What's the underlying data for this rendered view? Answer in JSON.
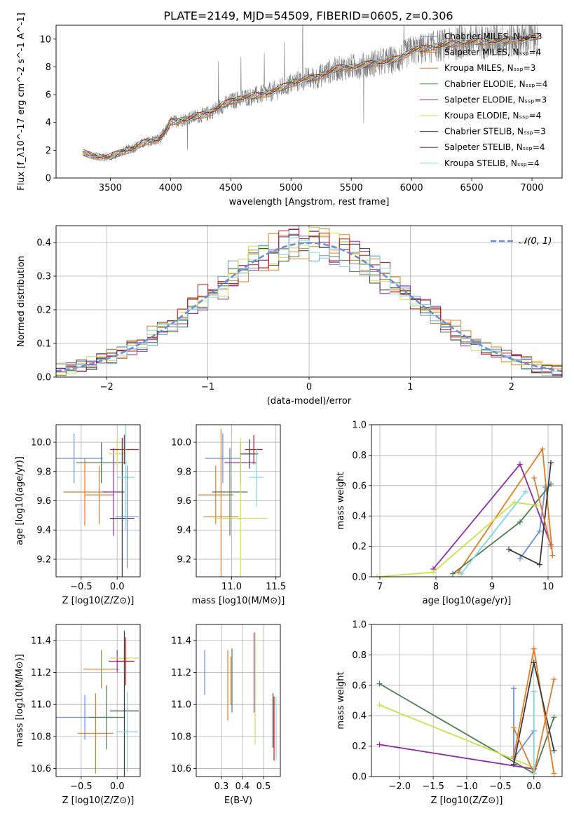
{
  "title": "PLATE=2149, MJD=54509, FIBERID=0605, z=0.306",
  "colors": {
    "Chabrier MILES": "#6a8fd8",
    "Salpeter MILES": "#e37c1f",
    "Kroupa MILES": "#d97f34",
    "Chabrier ELODIE": "#4b7f4f",
    "Salpeter ELODIE": "#8e2ea8",
    "Kroupa ELODIE": "#c9e24a",
    "Chabrier STELIB": "#3b3b3b",
    "Salpeter STELIB": "#c31a1a",
    "Kroupa STELIB": "#7fd6dd",
    "gaussian": "#6a8fd8",
    "data": "#808080"
  },
  "chart_data": [
    {
      "id": "spectrum",
      "type": "line",
      "xlabel": "wavelength [Angstrom, rest frame]",
      "ylabel": "Flux [f_λ10^-17 erg cm^-2 s^-1 A^-1]",
      "xlim": [
        3050,
        7250
      ],
      "ylim": [
        0,
        11
      ],
      "xticks": [
        3500,
        4000,
        4500,
        5000,
        5500,
        6000,
        6500,
        7000
      ],
      "yticks": [
        0,
        2,
        4,
        6,
        8,
        10
      ],
      "legend_position": "top-right",
      "series": [
        {
          "name": "Chabrier MILES, N_SSP=3"
        },
        {
          "name": "Salpeter MILES, N_SSP=4"
        },
        {
          "name": "Kroupa MILES, N_SSP=3"
        },
        {
          "name": "Chabrier ELODIE, N_SSP=4"
        },
        {
          "name": "Salpeter ELODIE, N_SSP=3"
        },
        {
          "name": "Kroupa ELODIE, N_SSP=4"
        },
        {
          "name": "Chabrier STELIB, N_SSP=3"
        },
        {
          "name": "Salpeter STELIB, N_SSP=4"
        },
        {
          "name": "Kroupa STELIB, N_SSP=4"
        }
      ],
      "model_continuum": {
        "x": [
          3270,
          3350,
          3500,
          3600,
          3700,
          3800,
          3900,
          3950,
          4000,
          4100,
          4200,
          4300,
          4400,
          4500,
          4600,
          4700,
          4800,
          4900,
          5000,
          5100,
          5200,
          5300,
          5400,
          5500,
          5600,
          5700,
          5800,
          5900,
          6000,
          6100,
          6200,
          6300,
          6400,
          6500,
          6600,
          6700,
          6800,
          6900,
          7000,
          7050
        ],
        "y": [
          1.8,
          1.6,
          1.5,
          1.9,
          2.2,
          2.6,
          2.8,
          3.2,
          4.0,
          4.2,
          4.4,
          4.6,
          5.1,
          5.5,
          5.8,
          5.9,
          6.1,
          6.4,
          6.8,
          7.1,
          7.2,
          7.6,
          7.9,
          8.0,
          8.1,
          8.3,
          8.4,
          8.6,
          9.2,
          9.3,
          9.5,
          9.6,
          9.7,
          9.8,
          9.8,
          9.9,
          9.9,
          10.0,
          10.1,
          10.2
        ]
      }
    },
    {
      "id": "residuals",
      "type": "histogram",
      "xlabel": "(data-model)/error",
      "ylabel": "Normed distribution",
      "xlim": [
        -2.5,
        2.5
      ],
      "ylim": [
        0,
        0.45
      ],
      "xticks": [
        -2,
        -1,
        0,
        1,
        2
      ],
      "yticks": [
        0.0,
        0.1,
        0.2,
        0.3,
        0.4
      ],
      "grid": true,
      "legend_position": "top-right",
      "gaussian_label": "𝒩(0, 1)"
    },
    {
      "id": "age_vs_Z",
      "type": "errorbar",
      "xlabel": "Z [log10(Z/Z⊙)]",
      "ylabel": "age  [log10(age/yr)]",
      "xlim": [
        -0.85,
        0.32
      ],
      "ylim": [
        9.08,
        10.12
      ],
      "xticks": [
        -0.5,
        0.0
      ],
      "yticks": [
        9.2,
        9.4,
        9.6,
        9.8,
        10.0
      ],
      "grid": true,
      "points": [
        {
          "x": -0.6,
          "y": 9.89,
          "xerr": 0.4,
          "yerr": 0.17
        },
        {
          "x": -0.45,
          "y": 9.66,
          "xerr": 0.3,
          "yerr": 0.23
        },
        {
          "x": -0.25,
          "y": 9.64,
          "xerr": 0.2,
          "yerr": 0.2
        },
        {
          "x": -0.22,
          "y": 9.86,
          "xerr": 0.35,
          "yerr": 0.14
        },
        {
          "x": -0.05,
          "y": 9.66,
          "xerr": 0.15,
          "yerr": 0.3
        },
        {
          "x": 0.0,
          "y": 9.92,
          "xerr": 0.12,
          "yerr": 0.1
        },
        {
          "x": 0.07,
          "y": 9.48,
          "xerr": 0.17,
          "yerr": 0.55
        },
        {
          "x": 0.1,
          "y": 9.95,
          "xerr": 0.2,
          "yerr": 0.1
        },
        {
          "x": 0.12,
          "y": 9.76,
          "xerr": 0.12,
          "yerr": 0.36
        },
        {
          "x": 0.14,
          "y": 9.49,
          "xerr": 0.16,
          "yerr": 0.35
        }
      ]
    },
    {
      "id": "age_vs_mass",
      "type": "errorbar",
      "xlabel": "mass [log10(M/M⊙)]",
      "xlim": [
        10.6,
        11.55
      ],
      "ylim": [
        9.08,
        10.12
      ],
      "xticks": [
        11.0,
        11.5
      ],
      "yticks": [
        9.2,
        9.4,
        9.6,
        9.8,
        10.0
      ],
      "grid": true,
      "points": [
        {
          "x": 10.9,
          "y": 9.89,
          "xerr": 0.2,
          "yerr": 0.17
        },
        {
          "x": 10.82,
          "y": 9.64,
          "xerr": 0.2,
          "yerr": 0.2
        },
        {
          "x": 10.88,
          "y": 9.49,
          "xerr": 0.2,
          "yerr": 0.6
        },
        {
          "x": 10.98,
          "y": 9.66,
          "xerr": 0.2,
          "yerr": 0.3
        },
        {
          "x": 11.1,
          "y": 9.86,
          "xerr": 0.18,
          "yerr": 0.14
        },
        {
          "x": 11.1,
          "y": 9.48,
          "xerr": 0.3,
          "yerr": 0.55
        },
        {
          "x": 11.2,
          "y": 9.92,
          "xerr": 0.1,
          "yerr": 0.1
        },
        {
          "x": 11.25,
          "y": 9.95,
          "xerr": 0.1,
          "yerr": 0.1
        },
        {
          "x": 11.28,
          "y": 9.76,
          "xerr": 0.08,
          "yerr": 0.2
        }
      ]
    },
    {
      "id": "weight_vs_age",
      "type": "line",
      "xlabel": "age  [log10(age/yr)]",
      "ylabel": "mass weight",
      "xlim": [
        6.85,
        10.25
      ],
      "ylim": [
        0,
        1.0
      ],
      "xticks": [
        7,
        8,
        9,
        10
      ],
      "yticks": [
        0.0,
        0.2,
        0.4,
        0.6,
        0.8,
        1.0
      ],
      "grid": true,
      "series": [
        {
          "name": "Chabrier MILES",
          "x": [
            9.5,
            9.85,
            9.95
          ],
          "y": [
            0.12,
            0.3,
            0.59
          ]
        },
        {
          "name": "Salpeter MILES",
          "x": [
            8.4,
            9.9,
            10.08
          ],
          "y": [
            0.03,
            0.84,
            0.14
          ]
        },
        {
          "name": "Chabrier ELODIE",
          "x": [
            8.3,
            9.5,
            10.05
          ],
          "y": [
            0.02,
            0.36,
            0.61
          ]
        },
        {
          "name": "Salpeter ELODIE",
          "x": [
            7.95,
            9.5,
            10.05
          ],
          "y": [
            0.05,
            0.74,
            0.21
          ]
        },
        {
          "name": "Kroupa ELODIE",
          "x": [
            6.95,
            7.95,
            9.4,
            9.8
          ],
          "y": [
            0.0,
            0.03,
            0.49,
            0.47
          ]
        },
        {
          "name": "Chabrier STELIB",
          "x": [
            9.3,
            9.85,
            10.05
          ],
          "y": [
            0.18,
            0.08,
            0.75
          ]
        },
        {
          "name": "Kroupa STELIB",
          "x": [
            8.45,
            9.6
          ],
          "y": [
            0.02,
            0.56
          ]
        },
        {
          "name": "Kroupa MILES",
          "x": [
            9.75,
            10.05
          ],
          "y": [
            0.65,
            0.2
          ]
        }
      ]
    },
    {
      "id": "mass_vs_Z",
      "type": "errorbar",
      "xlabel": "Z [log10(Z/Z⊙)]",
      "ylabel": "mass [log10(M/M⊙)]",
      "xlim": [
        -0.85,
        0.32
      ],
      "ylim": [
        10.55,
        11.5
      ],
      "xticks": [
        -0.5,
        0.0
      ],
      "yticks": [
        10.6,
        10.8,
        11.0,
        11.2,
        11.4
      ],
      "grid": true,
      "points": [
        {
          "x": -0.45,
          "y": 10.92,
          "xerr": 0.4,
          "yerr": 0.14
        },
        {
          "x": -0.3,
          "y": 10.82,
          "xerr": 0.25,
          "yerr": 0.25
        },
        {
          "x": -0.22,
          "y": 11.22,
          "xerr": 0.25,
          "yerr": 0.12
        },
        {
          "x": -0.15,
          "y": 10.92,
          "xerr": 0.25,
          "yerr": 0.2
        },
        {
          "x": 0.0,
          "y": 11.27,
          "xerr": 0.12,
          "yerr": 0.07
        },
        {
          "x": 0.1,
          "y": 11.29,
          "xerr": 0.2,
          "yerr": 0.06
        },
        {
          "x": 0.1,
          "y": 10.96,
          "xerr": 0.2,
          "yerr": 0.5
        },
        {
          "x": 0.12,
          "y": 11.27,
          "xerr": 0.12,
          "yerr": 0.15
        },
        {
          "x": 0.14,
          "y": 10.83,
          "xerr": 0.15,
          "yerr": 0.25
        }
      ]
    },
    {
      "id": "mass_vs_ebv",
      "type": "errorbar",
      "xlabel": "E(B-V)",
      "xlim": [
        0.18,
        0.58
      ],
      "ylim": [
        10.55,
        11.5
      ],
      "xticks": [
        0.3,
        0.4,
        0.5
      ],
      "yticks": [
        10.6,
        10.8,
        11.0,
        11.2,
        11.4
      ],
      "grid": true,
      "points": [
        {
          "x": 0.22,
          "y": 11.2,
          "xerr": 0,
          "yerr": 0.14
        },
        {
          "x": 0.33,
          "y": 11.12,
          "xerr": 0,
          "yerr": 0.22
        },
        {
          "x": 0.345,
          "y": 11.15,
          "xerr": 0,
          "yerr": 0.15
        },
        {
          "x": 0.35,
          "y": 11.15,
          "xerr": 0,
          "yerr": 0.2
        },
        {
          "x": 0.455,
          "y": 11.2,
          "xerr": 0,
          "yerr": 0.25
        },
        {
          "x": 0.46,
          "y": 11.1,
          "xerr": 0,
          "yerr": 0.35
        },
        {
          "x": 0.545,
          "y": 10.9,
          "xerr": 0,
          "yerr": 0.17
        },
        {
          "x": 0.55,
          "y": 10.85,
          "xerr": 0,
          "yerr": 0.2
        },
        {
          "x": 0.56,
          "y": 10.85,
          "xerr": 0,
          "yerr": 0.2
        }
      ]
    },
    {
      "id": "weight_vs_Z",
      "type": "line",
      "xlabel": "Z [log10(Z/Z⊙)]",
      "ylabel": "mass weight",
      "xlim": [
        -2.42,
        0.42
      ],
      "ylim": [
        0,
        1.0
      ],
      "xticks": [
        -2.0,
        -1.5,
        -1.0,
        -0.5,
        0.0
      ],
      "yticks": [
        0.0,
        0.2,
        0.4,
        0.6,
        0.8,
        1.0
      ],
      "grid": true,
      "series": [
        {
          "name": "Chabrier ELODIE",
          "x": [
            -2.3,
            0.0,
            0.3
          ],
          "y": [
            0.61,
            0.02,
            0.39
          ]
        },
        {
          "name": "Kroupa ELODIE",
          "x": [
            -2.3,
            0.0
          ],
          "y": [
            0.47,
            0.06
          ]
        },
        {
          "name": "Salpeter ELODIE",
          "x": [
            -2.3,
            0.0
          ],
          "y": [
            0.21,
            0.05
          ]
        },
        {
          "name": "Chabrier MILES",
          "x": [
            -0.3,
            -0.3,
            0.0
          ],
          "y": [
            0.58,
            0.12,
            0.3
          ]
        },
        {
          "name": "Salpeter MILES",
          "x": [
            -0.3,
            0.0,
            0.3
          ],
          "y": [
            0.13,
            0.84,
            0.02
          ]
        },
        {
          "name": "Chabrier STELIB",
          "x": [
            -0.3,
            0.0,
            0.3
          ],
          "y": [
            0.08,
            0.75,
            0.17
          ]
        },
        {
          "name": "Kroupa MILES",
          "x": [
            -0.3,
            0.0,
            0.3
          ],
          "y": [
            0.32,
            0.02,
            0.64
          ]
        },
        {
          "name": "Kroupa STELIB",
          "x": [
            0.0,
            0.0
          ],
          "y": [
            0.02,
            0.56
          ]
        }
      ]
    }
  ]
}
